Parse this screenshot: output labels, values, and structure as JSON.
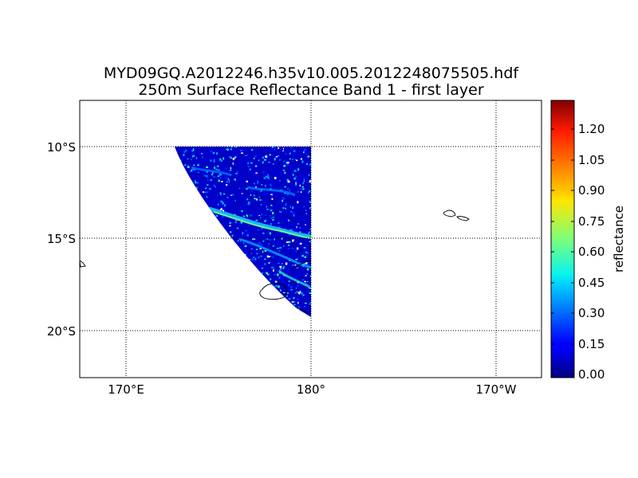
{
  "title": {
    "line1": "MYD09GQ.A2012246.h35v10.005.2012248075505.hdf",
    "line2": "250m Surface Reflectance Band 1 - first layer"
  },
  "map": {
    "projection": "equirectangular",
    "lon_range": [
      167.5,
      -172.5
    ],
    "lat_range": [
      -22.5,
      -7.5
    ],
    "grid": true,
    "lon_ticks": [
      "170°E",
      "180°",
      "170°W"
    ],
    "lat_ticks": [
      "10°S",
      "15°S",
      "20°S"
    ]
  },
  "colorbar": {
    "label": "reflectance",
    "colormap": "jet",
    "range": [
      0,
      1.3
    ],
    "ticks": [
      "0.00",
      "0.15",
      "0.30",
      "0.45",
      "0.60",
      "0.75",
      "0.90",
      "1.05",
      "1.20"
    ]
  },
  "colors": {
    "background": "#ffffff",
    "grid": "#000000",
    "coastline": "#000000"
  }
}
